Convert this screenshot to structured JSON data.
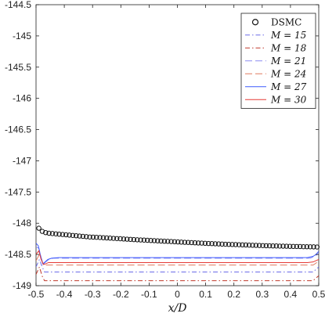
{
  "chart_data": {
    "type": "line",
    "xlabel": "x/D",
    "ylabel": "",
    "xlim": [
      -0.5,
      0.5
    ],
    "ylim": [
      -149,
      -144.5
    ],
    "xticks": [
      "-0.5",
      "-0.4",
      "-0.3",
      "-0.2",
      "-0.1",
      "0",
      "0.1",
      "0.2",
      "0.3",
      "0.4",
      "0.5"
    ],
    "yticks": [
      "-144.5",
      "-145",
      "-145.5",
      "-146",
      "-146.5",
      "-147",
      "-147.5",
      "-148",
      "-148.5",
      "-149"
    ],
    "legend_position": "top-right",
    "grid": false,
    "dsmc": {
      "name": "DSMC",
      "x": [
        -0.49,
        -0.478,
        -0.466,
        -0.454,
        -0.442,
        -0.43,
        -0.418,
        -0.406,
        -0.394,
        -0.382,
        -0.37,
        -0.358,
        -0.346,
        -0.334,
        -0.322,
        -0.31,
        -0.298,
        -0.286,
        -0.274,
        -0.262,
        -0.25,
        -0.238,
        -0.226,
        -0.214,
        -0.202,
        -0.19,
        -0.178,
        -0.166,
        -0.154,
        -0.142,
        -0.13,
        -0.118,
        -0.106,
        -0.094,
        -0.082,
        -0.07,
        -0.058,
        -0.046,
        -0.034,
        -0.022,
        -0.01,
        0.002,
        0.014,
        0.026,
        0.038,
        0.05,
        0.062,
        0.074,
        0.086,
        0.098,
        0.11,
        0.122,
        0.134,
        0.146,
        0.158,
        0.17,
        0.182,
        0.194,
        0.206,
        0.218,
        0.23,
        0.242,
        0.254,
        0.266,
        0.278,
        0.29,
        0.302,
        0.314,
        0.326,
        0.338,
        0.35,
        0.362,
        0.374,
        0.386,
        0.398,
        0.41,
        0.422,
        0.434,
        0.446,
        0.458,
        0.47,
        0.482,
        0.494
      ],
      "y": [
        -148.08,
        -148.13,
        -148.15,
        -148.16,
        -148.165,
        -148.17,
        -148.175,
        -148.18,
        -148.185,
        -148.19,
        -148.195,
        -148.2,
        -148.205,
        -148.21,
        -148.215,
        -148.22,
        -148.222,
        -148.225,
        -148.228,
        -148.232,
        -148.235,
        -148.238,
        -148.242,
        -148.245,
        -148.248,
        -148.252,
        -148.255,
        -148.258,
        -148.262,
        -148.265,
        -148.268,
        -148.27,
        -148.273,
        -148.276,
        -148.279,
        -148.282,
        -148.285,
        -148.288,
        -148.29,
        -148.293,
        -148.296,
        -148.299,
        -148.302,
        -148.305,
        -148.307,
        -148.31,
        -148.313,
        -148.316,
        -148.318,
        -148.321,
        -148.324,
        -148.326,
        -148.329,
        -148.331,
        -148.334,
        -148.336,
        -148.338,
        -148.34,
        -148.342,
        -148.344,
        -148.346,
        -148.348,
        -148.35,
        -148.352,
        -148.354,
        -148.356,
        -148.358,
        -148.36,
        -148.361,
        -148.363,
        -148.364,
        -148.366,
        -148.367,
        -148.368,
        -148.37,
        -148.371,
        -148.372,
        -148.373,
        -148.375,
        -148.376,
        -148.377,
        -148.378,
        -148.38
      ]
    },
    "series": [
      {
        "name": "M = 15",
        "color": "#6b6be8",
        "dash": "6,3,1.5,3",
        "x": [
          -0.5,
          -0.488,
          -0.478,
          -0.47,
          -0.46,
          -0.44,
          0.46,
          0.48,
          0.49,
          0.5
        ],
        "y": [
          -148.7,
          -148.58,
          -148.7,
          -148.78,
          -148.78,
          -148.78,
          -148.78,
          -148.78,
          -148.74,
          -148.7
        ]
      },
      {
        "name": "M = 18",
        "color": "#c0392b",
        "dash": "6,3,1.5,3",
        "x": [
          -0.5,
          -0.488,
          -0.478,
          -0.47,
          -0.46,
          -0.44,
          0.46,
          0.48,
          0.49,
          0.5
        ],
        "y": [
          -148.82,
          -148.7,
          -148.85,
          -148.92,
          -148.92,
          -148.92,
          -148.92,
          -148.92,
          -148.88,
          -148.84
        ]
      },
      {
        "name": "M = 21",
        "color": "#8c8cf0",
        "dash": "9,4",
        "x": [
          -0.5,
          -0.49,
          -0.482,
          -0.474,
          -0.466,
          -0.455,
          -0.44,
          -0.4,
          0.44,
          0.47,
          0.485,
          0.5
        ],
        "y": [
          -148.38,
          -148.4,
          -148.55,
          -148.66,
          -148.62,
          -148.58,
          -148.56,
          -148.56,
          -148.56,
          -148.56,
          -148.53,
          -148.48
        ]
      },
      {
        "name": "M = 24",
        "color": "#e07a5f",
        "dash": "9,4",
        "x": [
          -0.5,
          -0.488,
          -0.478,
          -0.47,
          -0.46,
          -0.44,
          0.46,
          0.48,
          0.49,
          0.5
        ],
        "y": [
          -148.6,
          -148.5,
          -148.62,
          -148.67,
          -148.67,
          -148.67,
          -148.67,
          -148.67,
          -148.64,
          -148.6
        ]
      },
      {
        "name": "M = 27",
        "color": "#3d5afe",
        "dash": "",
        "x": [
          -0.5,
          -0.492,
          -0.484,
          -0.476,
          -0.468,
          -0.458,
          -0.445,
          -0.42,
          0.42,
          0.46,
          0.48,
          0.49,
          0.5
        ],
        "y": [
          -148.32,
          -148.36,
          -148.52,
          -148.65,
          -148.62,
          -148.58,
          -148.56,
          -148.55,
          -148.55,
          -148.55,
          -148.53,
          -148.5,
          -148.45
        ]
      },
      {
        "name": "M = 30",
        "color": "#e53935",
        "dash": "",
        "x": [
          -0.5,
          -0.49,
          -0.482,
          -0.474,
          -0.466,
          -0.456,
          -0.44,
          0.46,
          0.48,
          0.49,
          0.5
        ],
        "y": [
          -148.5,
          -148.44,
          -148.58,
          -148.66,
          -148.65,
          -148.63,
          -148.63,
          -148.63,
          -148.62,
          -148.6,
          -148.58
        ]
      }
    ]
  }
}
